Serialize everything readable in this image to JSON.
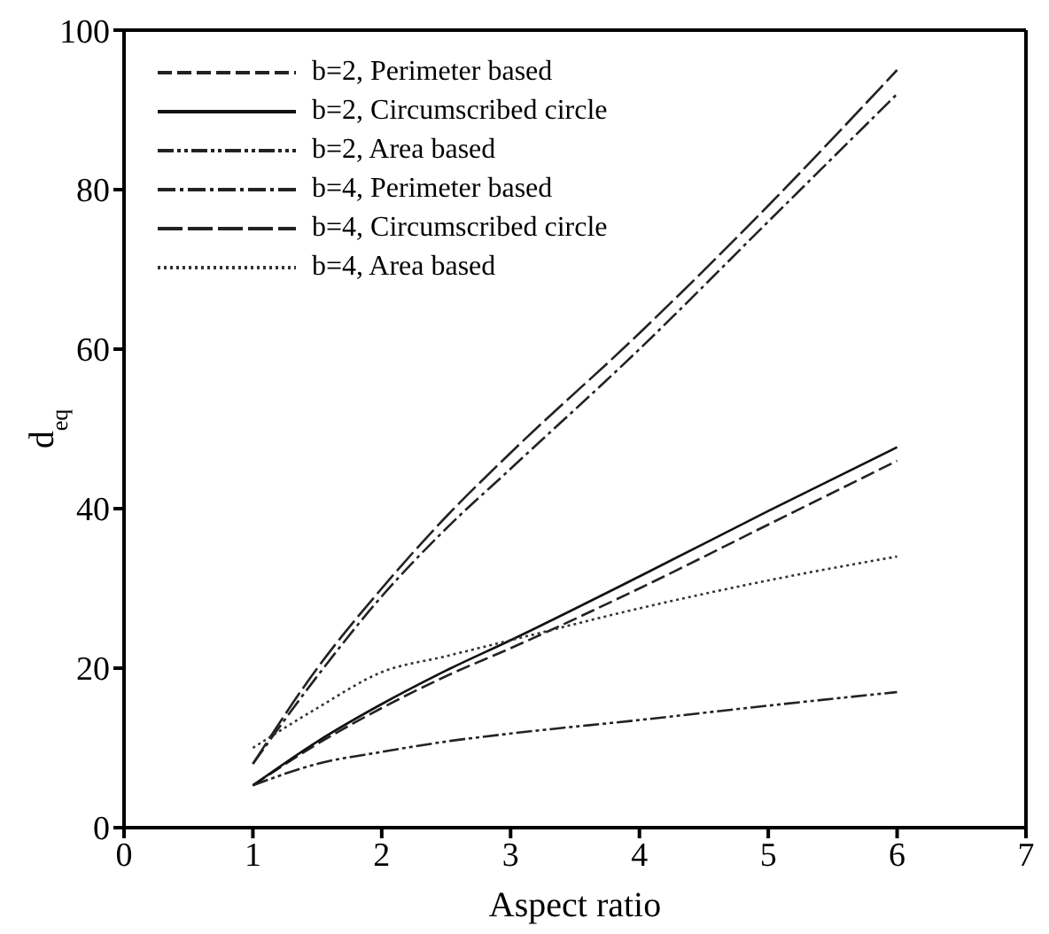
{
  "chart_data": {
    "type": "line",
    "xlabel": "Aspect ratio",
    "ylabel": "d$_{eq}$",
    "xlim": [
      0,
      7
    ],
    "xticks": [
      0,
      1,
      2,
      3,
      4,
      5,
      6,
      7
    ],
    "ylim": [
      0,
      100
    ],
    "yticks": [
      0,
      20,
      40,
      60,
      80,
      100
    ],
    "grid": false,
    "legend": "top left",
    "marker": "none",
    "series": [
      {
        "name": "b=2, Perimeter based",
        "color": "#222222",
        "line_style": "dashed",
        "x": [
          1,
          1.5,
          2,
          2.5,
          3,
          4,
          5,
          6
        ],
        "values": [
          5.3,
          10.5,
          15,
          19,
          22.5,
          30,
          38,
          46
        ]
      },
      {
        "name": "b=2, Circumscribed circle",
        "color": "#111111",
        "line_style": "solid",
        "x": [
          1,
          1.5,
          2,
          2.5,
          3,
          4,
          5,
          6
        ],
        "values": [
          5.3,
          10.8,
          15.5,
          19.7,
          23.5,
          31.5,
          39.7,
          47.7
        ]
      },
      {
        "name": "b=2, Area based",
        "color": "#222222",
        "line_style": "dashdotdot",
        "x": [
          1,
          1.5,
          2,
          2.5,
          3,
          4,
          5,
          6
        ],
        "values": [
          5.3,
          8,
          9.5,
          10.8,
          11.8,
          13.5,
          15.3,
          17
        ]
      },
      {
        "name": "b=4, Perimeter based",
        "color": "#222222",
        "line_style": "dashdot",
        "x": [
          1,
          1.5,
          2,
          2.5,
          3,
          4,
          5,
          6
        ],
        "values": [
          8,
          19,
          29,
          37.5,
          45,
          60,
          76,
          92
        ]
      },
      {
        "name": "b=4, Circumscribed circle",
        "color": "#222222",
        "line_style": "longdash",
        "x": [
          1,
          1.5,
          2,
          2.5,
          3,
          4,
          5,
          6
        ],
        "values": [
          8,
          20,
          30,
          39,
          47,
          62,
          78,
          95
        ]
      },
      {
        "name": "b=4, Area based",
        "color": "#333333",
        "line_style": "dotted",
        "x": [
          1,
          1.5,
          2,
          2.5,
          3,
          4,
          5,
          6
        ],
        "values": [
          10,
          15,
          19.5,
          21.5,
          23.5,
          27.5,
          31,
          34
        ]
      }
    ]
  }
}
